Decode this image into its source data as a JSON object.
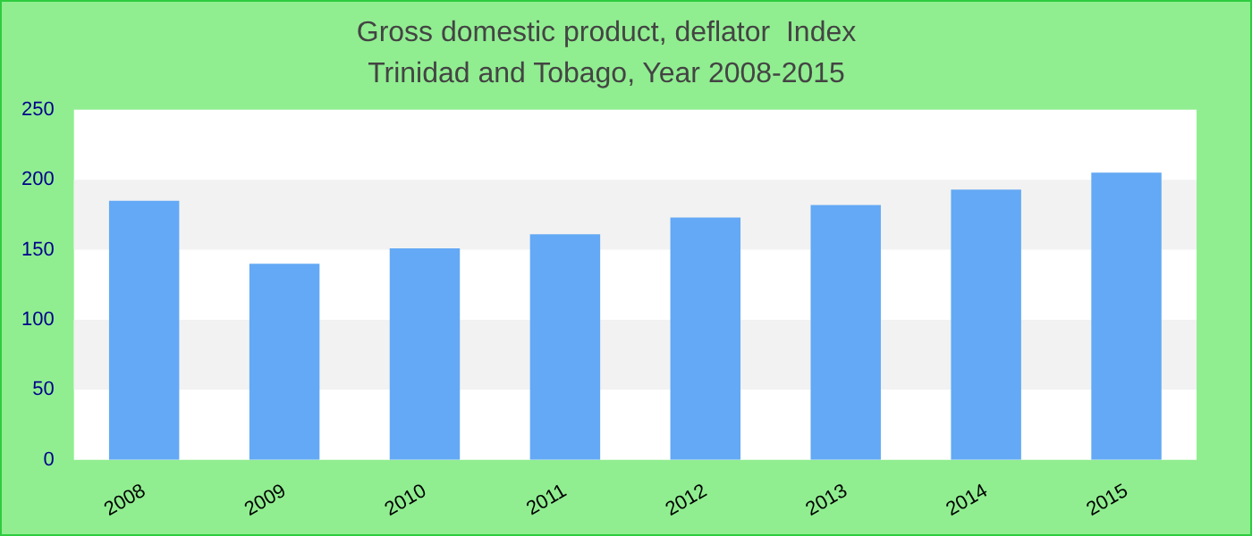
{
  "chart_data": {
    "type": "bar",
    "title": "Gross domestic product, deflator  Index",
    "subtitle": "Trinidad and Tobago, Year 2008-2015",
    "categories": [
      "2008",
      "2009",
      "2010",
      "2011",
      "2012",
      "2013",
      "2014",
      "2015"
    ],
    "values": [
      185,
      140,
      151,
      161,
      173,
      182,
      193,
      205
    ],
    "color": "#63a9f5",
    "ylim": [
      0,
      250
    ],
    "yticks": [
      0,
      50,
      100,
      150,
      200,
      250
    ]
  }
}
